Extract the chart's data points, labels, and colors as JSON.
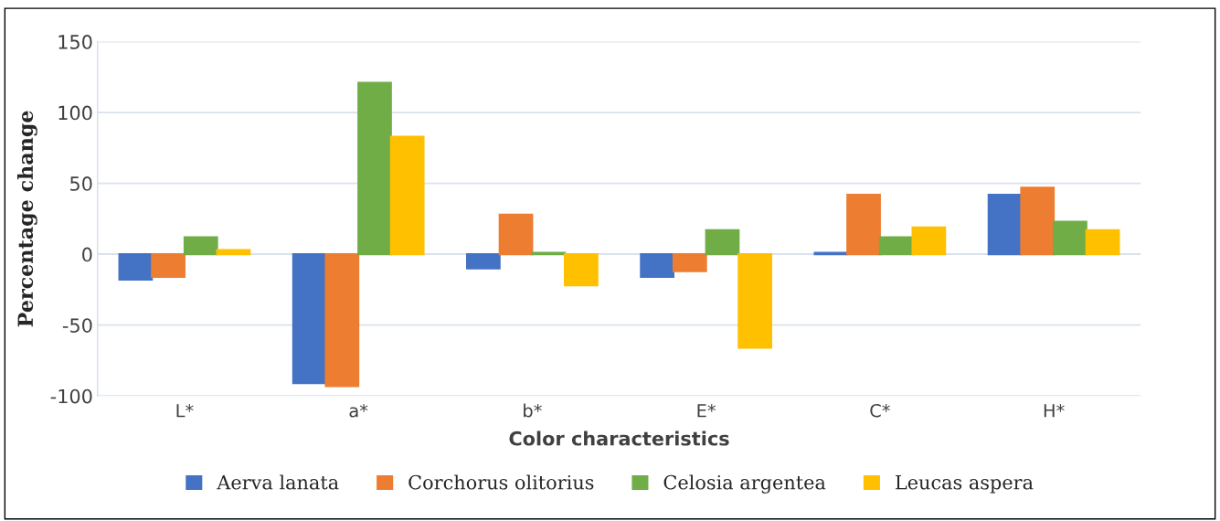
{
  "chart_data": {
    "type": "bar",
    "xlabel": "Color characteristics",
    "ylabel": "Percentage change",
    "categories": [
      "L*",
      "a*",
      "b*",
      "E*",
      "C*",
      "H*"
    ],
    "series": [
      {
        "name": "Aerva lanata",
        "color": "#4472c4",
        "values": [
          -18,
          -91,
          -10,
          -16,
          1,
          42
        ]
      },
      {
        "name": "Corchorus olitorius",
        "color": "#ed7d31",
        "values": [
          -16,
          -93,
          28,
          -12,
          42,
          47
        ]
      },
      {
        "name": "Celosia argentea",
        "color": "#70ad47",
        "values": [
          12,
          121,
          1,
          17,
          12,
          23
        ]
      },
      {
        "name": "Leucas aspera",
        "color": "#ffc000",
        "values": [
          3,
          83,
          -22,
          -66,
          19,
          17
        ]
      }
    ],
    "ylim": [
      -100,
      150
    ],
    "yticks": [
      -100,
      -50,
      0,
      50,
      100,
      150
    ],
    "grid": "y",
    "legend": "bottom"
  }
}
